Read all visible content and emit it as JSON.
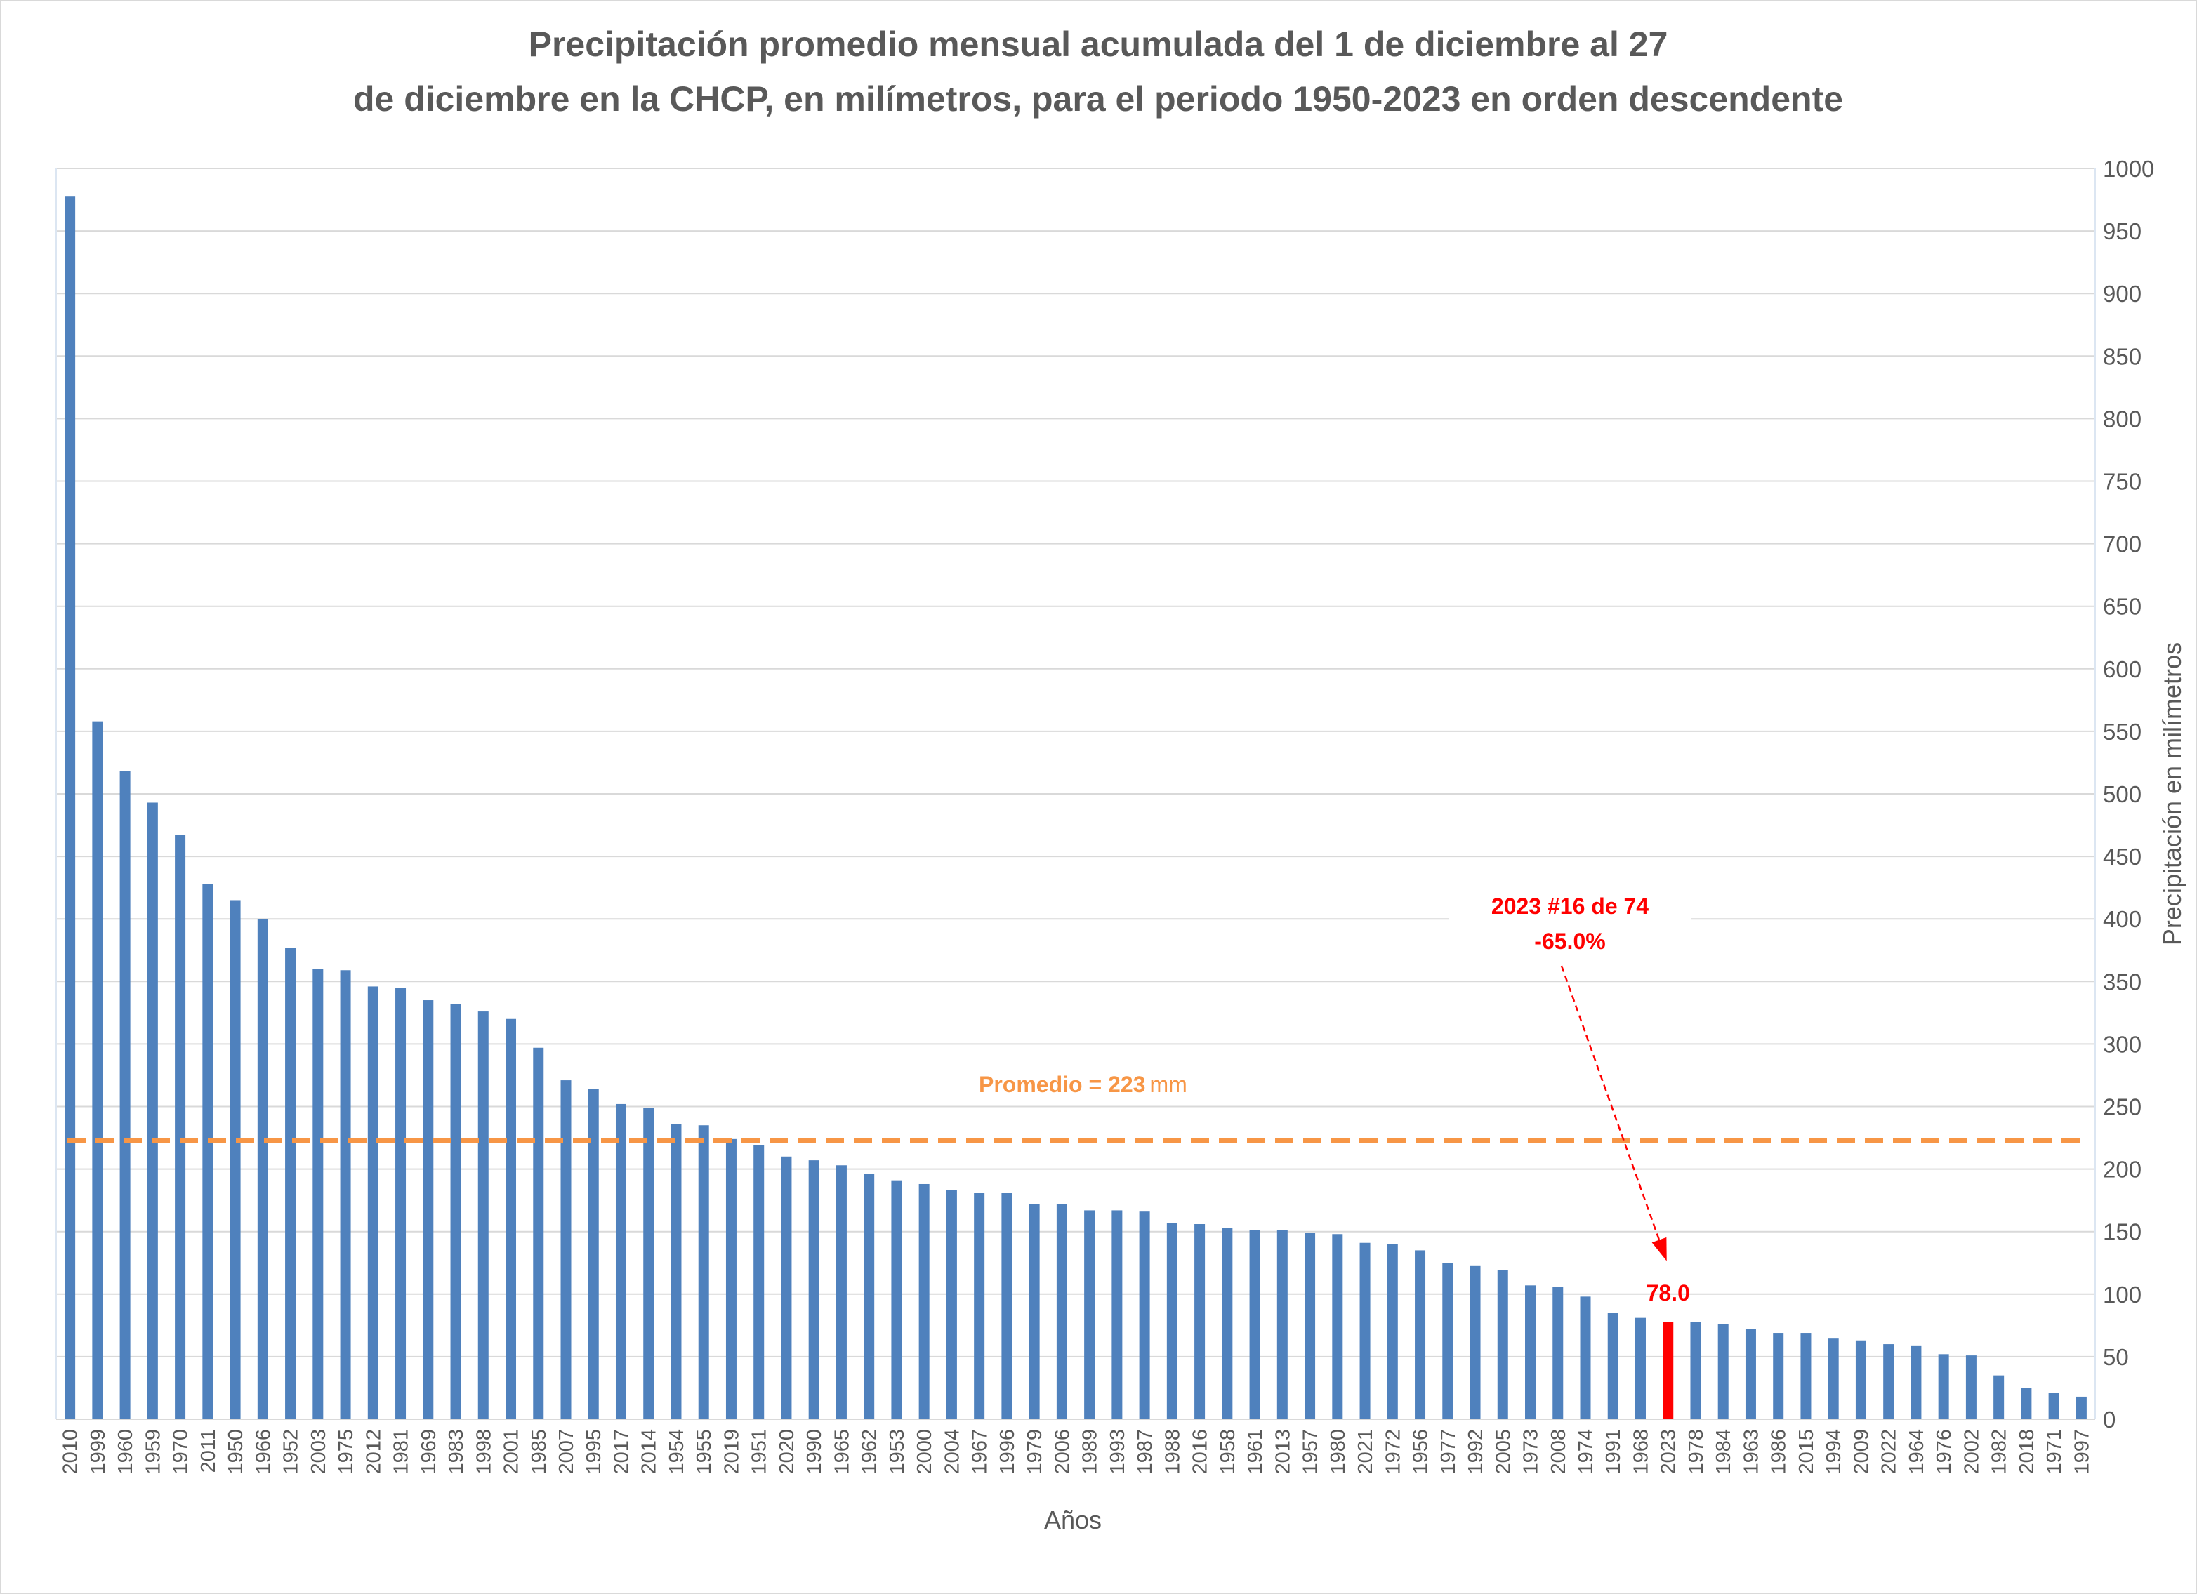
{
  "chart_data": {
    "type": "bar",
    "title": [
      "Precipitación promedio mensual acumulada del 1 de diciembre al 27",
      "de diciembre en la CHCP, en milímetros, para el periodo 1950-2023 en orden descendente"
    ],
    "xlabel": "Años",
    "ylabel": "Precipitación en milímetros",
    "ylim": [
      0,
      1000
    ],
    "ytick_step": 50,
    "y_axis_side": "right",
    "grid": true,
    "colors": {
      "bar": "#4f81bd",
      "highlight": "#ff0000",
      "average": "#f79646",
      "grid": "#d9d9d9",
      "text": "#595959"
    },
    "categories": [
      "2010",
      "1999",
      "1960",
      "1959",
      "1970",
      "2011",
      "1950",
      "1966",
      "1952",
      "2003",
      "1975",
      "2012",
      "1981",
      "1969",
      "1983",
      "1998",
      "2001",
      "1985",
      "2007",
      "1995",
      "2017",
      "2014",
      "1954",
      "1955",
      "2019",
      "1951",
      "2020",
      "1990",
      "1965",
      "1962",
      "1953",
      "2000",
      "2004",
      "1967",
      "1996",
      "1979",
      "2006",
      "1989",
      "1993",
      "1987",
      "1988",
      "2016",
      "1958",
      "1961",
      "2013",
      "1957",
      "1980",
      "2021",
      "1972",
      "1956",
      "1977",
      "1992",
      "2005",
      "1973",
      "2008",
      "1974",
      "1991",
      "1968",
      "2023",
      "1978",
      "1984",
      "1963",
      "1986",
      "2015",
      "1994",
      "2009",
      "2022",
      "1964",
      "1976",
      "2002",
      "1982",
      "2018",
      "1971",
      "1997"
    ],
    "values": [
      978,
      558,
      518,
      493,
      467,
      428,
      415,
      400,
      377,
      360,
      359,
      346,
      345,
      335,
      332,
      326,
      320,
      297,
      271,
      264,
      252,
      249,
      236,
      235,
      224,
      219,
      210,
      207,
      203,
      196,
      191,
      188,
      183,
      181,
      181,
      172,
      172,
      167,
      167,
      166,
      157,
      156,
      153,
      151,
      151,
      149,
      148,
      141,
      140,
      135,
      125,
      123,
      119,
      107,
      106,
      98,
      85,
      81,
      78,
      78,
      76,
      72,
      69,
      69,
      65,
      63,
      60,
      59,
      52,
      51,
      35,
      25,
      21,
      18
    ],
    "highlight": {
      "category": "2023",
      "value": 78.0,
      "value_label": "78.0",
      "annotation": [
        "2023 #16 de 74",
        "-65.0%"
      ]
    },
    "average": {
      "value": 223,
      "label_prefix": "Promedio = ",
      "label_value": "223",
      "label_unit": "mm"
    }
  }
}
